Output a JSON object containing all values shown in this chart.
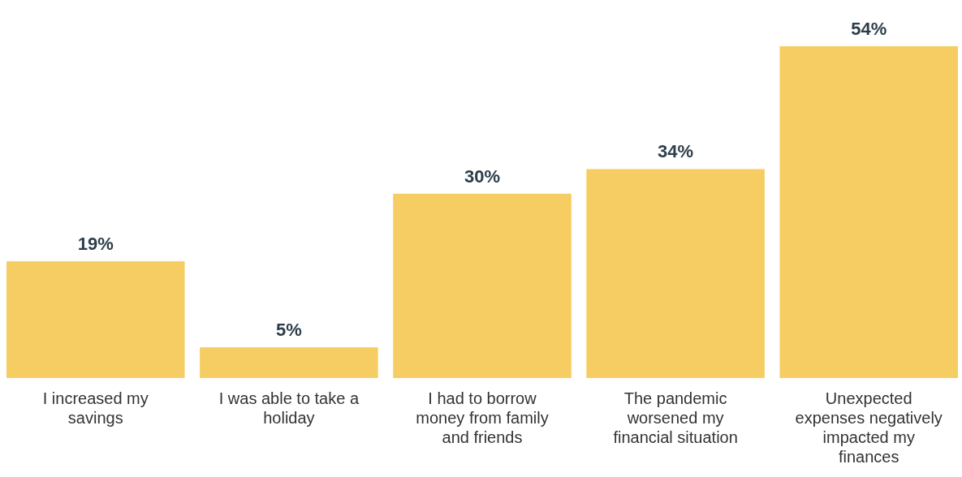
{
  "chart_data": {
    "type": "bar",
    "categories": [
      "I increased my savings",
      "I was able to take a holiday",
      "I had to borrow money from family and friends",
      "The pandemic worsened my financial situation",
      "Unexpected expenses negatively impacted my finances"
    ],
    "values": [
      19,
      5,
      30,
      34,
      54
    ],
    "value_labels": [
      "19%",
      "5%",
      "30%",
      "34%",
      "54%"
    ],
    "color": "#f5cd62"
  }
}
